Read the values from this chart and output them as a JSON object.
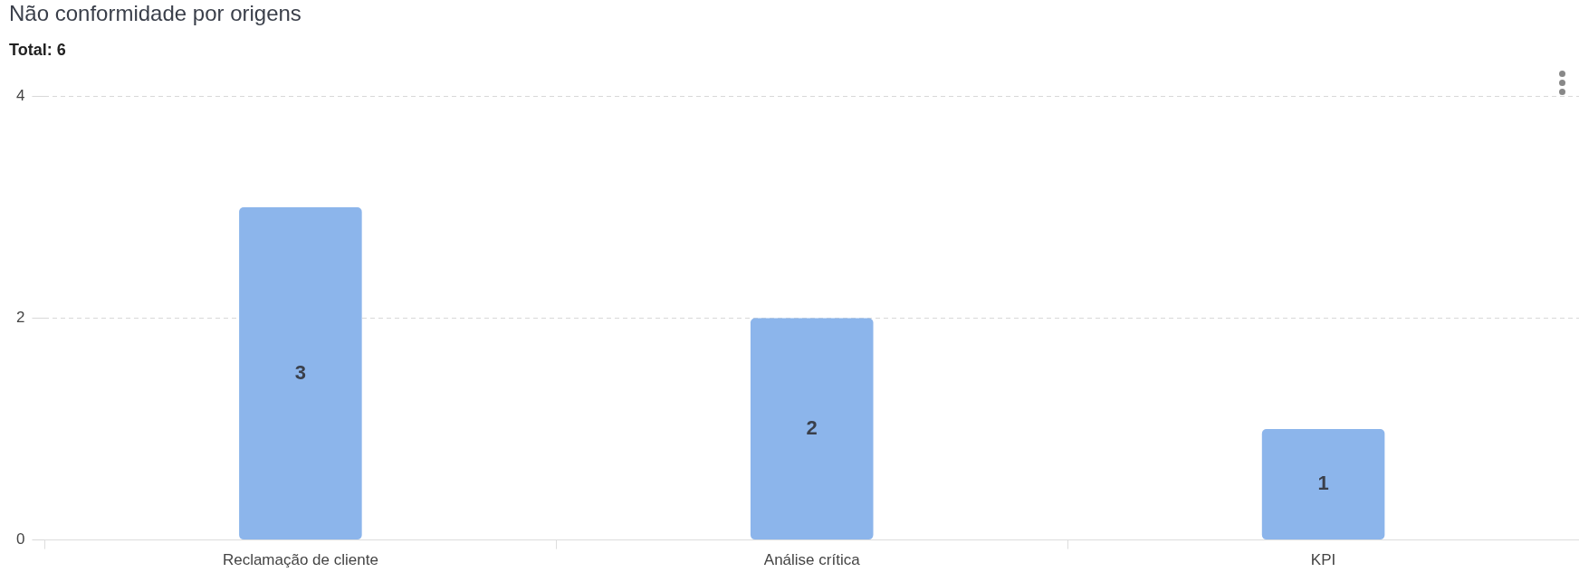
{
  "chart_data": {
    "type": "bar",
    "title": "Não conformidade por origens",
    "subtitle": "Total: 6",
    "categories": [
      "Reclamação de cliente",
      "Análise crítica",
      "KPI"
    ],
    "values": [
      3,
      2,
      1
    ],
    "color": "#8cb5eb",
    "ylim": [
      0,
      4
    ],
    "yticks": [
      0,
      2,
      4
    ],
    "grid": "y",
    "data_labels": true
  }
}
